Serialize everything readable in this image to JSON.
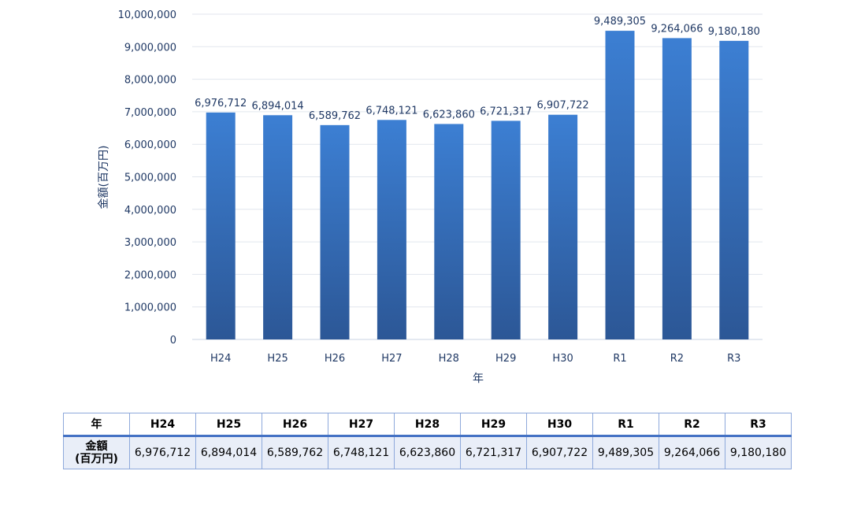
{
  "chart_data": {
    "type": "bar",
    "categories": [
      "H24",
      "H25",
      "H26",
      "H27",
      "H28",
      "H29",
      "H30",
      "R1",
      "R2",
      "R3"
    ],
    "values": [
      6976712,
      6894014,
      6589762,
      6748121,
      6623860,
      6721317,
      6907722,
      9489305,
      9264066,
      9180180
    ],
    "data_labels": [
      "6,976,712",
      "6,894,014",
      "6,589,762",
      "6,748,121",
      "6,623,860",
      "6,721,317",
      "6,907,722",
      "9,489,305",
      "9,264,066",
      "9,180,180"
    ],
    "xlabel": "年",
    "ylabel": "金額(百万円)",
    "ylim": [
      0,
      10000000
    ],
    "y_ticks": [
      "0",
      "1,000,000",
      "2,000,000",
      "3,000,000",
      "4,000,000",
      "5,000,000",
      "6,000,000",
      "7,000,000",
      "8,000,000",
      "9,000,000",
      "10,000,000"
    ],
    "grid": true,
    "bar_color_top": "#3c7fd3",
    "bar_color_bottom": "#2c5796",
    "text_color": "#1f3864"
  },
  "table": {
    "header_label": "年",
    "row_label_line1": "金額",
    "row_label_line2": "(百万円)",
    "columns": [
      "H24",
      "H25",
      "H26",
      "H27",
      "H28",
      "H29",
      "H30",
      "R1",
      "R2",
      "R3"
    ],
    "values": [
      "6,976,712",
      "6,894,014",
      "6,589,762",
      "6,748,121",
      "6,623,860",
      "6,721,317",
      "6,907,722",
      "9,489,305",
      "9,264,066",
      "9,180,180"
    ]
  }
}
